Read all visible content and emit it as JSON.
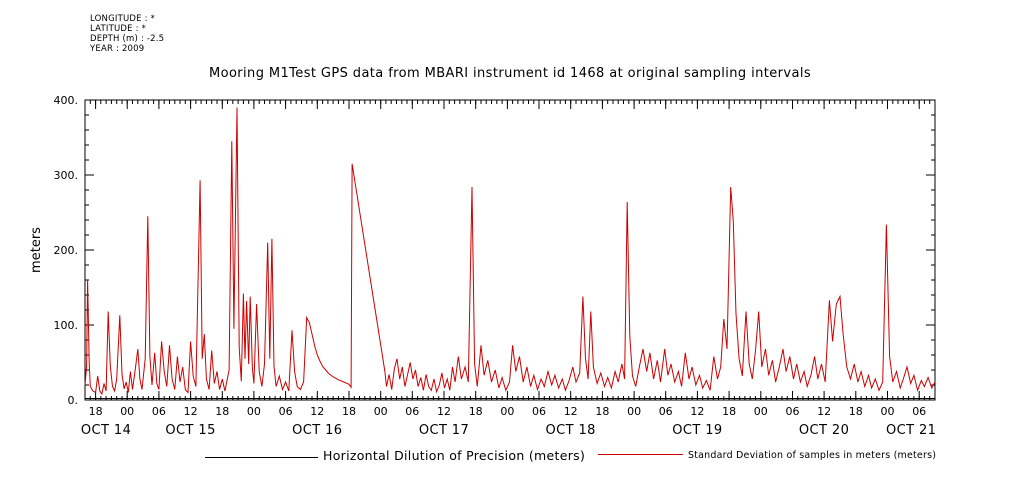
{
  "header_info": {
    "lines": [
      "LONGITUDE : *",
      "LATITUDE : *",
      "DEPTH (m) : -2.5",
      "YEAR : 2009"
    ]
  },
  "title": "Mooring M1Test GPS data from MBARI instrument id 1468 at original sampling intervals",
  "chart_data": {
    "type": "line",
    "title": "Mooring M1Test GPS data from MBARI instrument id 1468 at original sampling intervals",
    "xlabel": "",
    "ylabel": "meters",
    "xlim": [
      0,
      161
    ],
    "ylim": [
      0,
      400
    ],
    "x_minor_step": 1,
    "y_minor_step": 20,
    "grid": false,
    "legend_position": "bottom",
    "x_units": "hours since OCT 14 16:00 2009",
    "yticks": [
      0,
      100,
      200,
      300,
      400
    ],
    "ytick_labels": [
      "0.",
      "100.",
      "200.",
      "300.",
      "400."
    ],
    "xticks": [
      [
        2,
        "18"
      ],
      [
        8,
        "00"
      ],
      [
        14,
        "06"
      ],
      [
        20,
        "12"
      ],
      [
        26,
        "18"
      ],
      [
        32,
        "00"
      ],
      [
        38,
        "06"
      ],
      [
        44,
        "12"
      ],
      [
        50,
        "18"
      ],
      [
        56,
        "00"
      ],
      [
        62,
        "06"
      ],
      [
        68,
        "12"
      ],
      [
        74,
        "18"
      ],
      [
        80,
        "00"
      ],
      [
        86,
        "06"
      ],
      [
        92,
        "12"
      ],
      [
        98,
        "18"
      ],
      [
        104,
        "00"
      ],
      [
        110,
        "06"
      ],
      [
        116,
        "12"
      ],
      [
        122,
        "18"
      ],
      [
        128,
        "00"
      ],
      [
        134,
        "06"
      ],
      [
        140,
        "12"
      ],
      [
        146,
        "18"
      ],
      [
        152,
        "00"
      ],
      [
        158,
        "06"
      ]
    ],
    "day_labels": [
      [
        4,
        "OCT 14"
      ],
      [
        20,
        "OCT 15"
      ],
      [
        44,
        "OCT 16"
      ],
      [
        68,
        "OCT 17"
      ],
      [
        92,
        "OCT 18"
      ],
      [
        116,
        "OCT 19"
      ],
      [
        140,
        "OCT 20"
      ],
      [
        156.5,
        "OCT 21"
      ]
    ],
    "series": [
      {
        "id": "hdop",
        "name": "Horizontal Dilution of Precision (meters)",
        "color": "#000000",
        "points": [
          [
            0,
            2
          ],
          [
            161,
            2
          ]
        ]
      },
      {
        "id": "stddev",
        "name": "Standard Deviation of samples in meters (meters)",
        "color": "#cc0000",
        "points": [
          [
            0,
            20
          ],
          [
            0.3,
            45
          ],
          [
            0.5,
            160
          ],
          [
            0.8,
            50
          ],
          [
            1,
            18
          ],
          [
            1.5,
            12
          ],
          [
            2,
            10
          ],
          [
            2.4,
            32
          ],
          [
            2.8,
            12
          ],
          [
            3.2,
            8
          ],
          [
            3.6,
            22
          ],
          [
            4,
            12
          ],
          [
            4.4,
            118
          ],
          [
            4.8,
            45
          ],
          [
            5.2,
            18
          ],
          [
            5.6,
            12
          ],
          [
            6,
            28
          ],
          [
            6.6,
            113
          ],
          [
            7,
            35
          ],
          [
            7.4,
            15
          ],
          [
            7.8,
            24
          ],
          [
            8.2,
            10
          ],
          [
            8.6,
            38
          ],
          [
            9,
            14
          ],
          [
            9.5,
            40
          ],
          [
            10,
            68
          ],
          [
            10.4,
            28
          ],
          [
            10.8,
            14
          ],
          [
            11.4,
            55
          ],
          [
            11.9,
            245
          ],
          [
            12.3,
            58
          ],
          [
            12.7,
            20
          ],
          [
            13.2,
            63
          ],
          [
            13.6,
            22
          ],
          [
            14,
            14
          ],
          [
            14.5,
            78
          ],
          [
            15,
            38
          ],
          [
            15.5,
            18
          ],
          [
            16,
            73
          ],
          [
            16.5,
            28
          ],
          [
            17,
            14
          ],
          [
            17.5,
            58
          ],
          [
            18,
            24
          ],
          [
            18.5,
            44
          ],
          [
            19,
            14
          ],
          [
            19.5,
            10
          ],
          [
            20,
            78
          ],
          [
            20.5,
            32
          ],
          [
            21,
            18
          ],
          [
            21.8,
            293
          ],
          [
            22.2,
            55
          ],
          [
            22.6,
            88
          ],
          [
            23,
            28
          ],
          [
            23.5,
            14
          ],
          [
            24,
            66
          ],
          [
            24.5,
            22
          ],
          [
            25,
            38
          ],
          [
            25.5,
            14
          ],
          [
            26,
            28
          ],
          [
            26.5,
            12
          ],
          [
            27.3,
            40
          ],
          [
            27.8,
            345
          ],
          [
            28.2,
            95
          ],
          [
            28.8,
            390
          ],
          [
            29.2,
            70
          ],
          [
            29.6,
            25
          ],
          [
            30,
            142
          ],
          [
            30.3,
            55
          ],
          [
            30.6,
            132
          ],
          [
            31,
            48
          ],
          [
            31.3,
            138
          ],
          [
            31.7,
            42
          ],
          [
            32,
            22
          ],
          [
            32.5,
            128
          ],
          [
            33,
            38
          ],
          [
            33.5,
            18
          ],
          [
            34,
            48
          ],
          [
            34.6,
            210
          ],
          [
            35,
            55
          ],
          [
            35.4,
            215
          ],
          [
            35.8,
            45
          ],
          [
            36.2,
            18
          ],
          [
            36.8,
            32
          ],
          [
            37.4,
            14
          ],
          [
            38,
            24
          ],
          [
            38.6,
            12
          ],
          [
            39.2,
            93
          ],
          [
            39.7,
            38
          ],
          [
            40.2,
            18
          ],
          [
            40.8,
            14
          ],
          [
            41.4,
            24
          ],
          [
            42,
            110
          ],
          [
            42.5,
            103
          ],
          [
            43,
            88
          ],
          [
            43.5,
            72
          ],
          [
            44,
            60
          ],
          [
            44.5,
            52
          ],
          [
            45,
            45
          ],
          [
            45.6,
            40
          ],
          [
            46.2,
            35
          ],
          [
            47,
            31
          ],
          [
            48,
            27
          ],
          [
            49,
            24
          ],
          [
            50,
            21
          ],
          [
            50.4,
            17
          ],
          [
            50.6,
            315
          ],
          [
            56.8,
            38
          ],
          [
            57.1,
            18
          ],
          [
            57.6,
            34
          ],
          [
            58.1,
            14
          ],
          [
            58.6,
            42
          ],
          [
            59.1,
            55
          ],
          [
            59.6,
            28
          ],
          [
            60.1,
            44
          ],
          [
            60.6,
            18
          ],
          [
            61.1,
            34
          ],
          [
            61.6,
            50
          ],
          [
            62.1,
            28
          ],
          [
            62.6,
            40
          ],
          [
            63.1,
            18
          ],
          [
            63.6,
            30
          ],
          [
            64.1,
            13
          ],
          [
            64.6,
            34
          ],
          [
            65.1,
            18
          ],
          [
            65.6,
            13
          ],
          [
            66.1,
            28
          ],
          [
            66.6,
            11
          ],
          [
            67.1,
            20
          ],
          [
            67.6,
            36
          ],
          [
            68.1,
            16
          ],
          [
            68.6,
            28
          ],
          [
            69.1,
            13
          ],
          [
            69.6,
            44
          ],
          [
            70.1,
            24
          ],
          [
            70.7,
            58
          ],
          [
            71.3,
            28
          ],
          [
            72,
            44
          ],
          [
            72.6,
            24
          ],
          [
            73.3,
            284
          ],
          [
            73.8,
            48
          ],
          [
            74.3,
            18
          ],
          [
            75,
            73
          ],
          [
            75.6,
            33
          ],
          [
            76.3,
            53
          ],
          [
            77,
            24
          ],
          [
            77.7,
            40
          ],
          [
            78.4,
            16
          ],
          [
            79,
            30
          ],
          [
            79.7,
            13
          ],
          [
            80.4,
            24
          ],
          [
            81,
            73
          ],
          [
            81.6,
            38
          ],
          [
            82.3,
            58
          ],
          [
            83,
            24
          ],
          [
            83.7,
            44
          ],
          [
            84.4,
            18
          ],
          [
            85,
            33
          ],
          [
            85.7,
            14
          ],
          [
            86.4,
            28
          ],
          [
            87,
            18
          ],
          [
            87.7,
            38
          ],
          [
            88.4,
            20
          ],
          [
            89,
            33
          ],
          [
            89.7,
            16
          ],
          [
            90.4,
            28
          ],
          [
            91,
            13
          ],
          [
            91.7,
            26
          ],
          [
            92.4,
            44
          ],
          [
            93,
            24
          ],
          [
            93.7,
            36
          ],
          [
            94.3,
            138
          ],
          [
            94.8,
            55
          ],
          [
            95.3,
            28
          ],
          [
            95.8,
            118
          ],
          [
            96.3,
            44
          ],
          [
            97,
            22
          ],
          [
            97.7,
            36
          ],
          [
            98.4,
            18
          ],
          [
            99,
            30
          ],
          [
            99.7,
            16
          ],
          [
            100.4,
            38
          ],
          [
            101,
            24
          ],
          [
            101.7,
            48
          ],
          [
            102.2,
            28
          ],
          [
            102.7,
            264
          ],
          [
            103.2,
            85
          ],
          [
            103.7,
            32
          ],
          [
            104.3,
            18
          ],
          [
            105,
            44
          ],
          [
            105.7,
            68
          ],
          [
            106.4,
            38
          ],
          [
            107,
            63
          ],
          [
            107.7,
            28
          ],
          [
            108.4,
            53
          ],
          [
            109,
            24
          ],
          [
            109.8,
            68
          ],
          [
            110.4,
            33
          ],
          [
            111,
            48
          ],
          [
            111.7,
            24
          ],
          [
            112.4,
            38
          ],
          [
            113,
            18
          ],
          [
            113.7,
            63
          ],
          [
            114.4,
            28
          ],
          [
            115,
            44
          ],
          [
            115.7,
            20
          ],
          [
            116.4,
            33
          ],
          [
            117,
            16
          ],
          [
            117.7,
            26
          ],
          [
            118.4,
            13
          ],
          [
            119.1,
            58
          ],
          [
            119.8,
            28
          ],
          [
            120.4,
            44
          ],
          [
            121,
            108
          ],
          [
            121.6,
            68
          ],
          [
            122.3,
            284
          ],
          [
            122.8,
            238
          ],
          [
            123.3,
            115
          ],
          [
            123.9,
            55
          ],
          [
            124.5,
            32
          ],
          [
            125.2,
            118
          ],
          [
            125.8,
            48
          ],
          [
            126.4,
            28
          ],
          [
            127,
            66
          ],
          [
            127.6,
            118
          ],
          [
            128.2,
            44
          ],
          [
            128.9,
            68
          ],
          [
            129.5,
            33
          ],
          [
            130.2,
            53
          ],
          [
            130.8,
            24
          ],
          [
            131.5,
            44
          ],
          [
            132.2,
            68
          ],
          [
            132.8,
            38
          ],
          [
            133.5,
            58
          ],
          [
            134.2,
            28
          ],
          [
            134.8,
            48
          ],
          [
            135.5,
            24
          ],
          [
            136.2,
            38
          ],
          [
            136.8,
            18
          ],
          [
            137.5,
            33
          ],
          [
            138.2,
            58
          ],
          [
            138.8,
            28
          ],
          [
            139.5,
            48
          ],
          [
            140.2,
            24
          ],
          [
            141,
            133
          ],
          [
            141.6,
            78
          ],
          [
            142.3,
            128
          ],
          [
            143,
            138
          ],
          [
            143.6,
            88
          ],
          [
            144.3,
            44
          ],
          [
            145,
            28
          ],
          [
            145.7,
            48
          ],
          [
            146.4,
            24
          ],
          [
            147,
            38
          ],
          [
            147.7,
            18
          ],
          [
            148.4,
            33
          ],
          [
            149,
            16
          ],
          [
            149.7,
            28
          ],
          [
            150.4,
            13
          ],
          [
            151.1,
            24
          ],
          [
            151.8,
            234
          ],
          [
            152.4,
            58
          ],
          [
            153,
            24
          ],
          [
            153.7,
            38
          ],
          [
            154.4,
            16
          ],
          [
            155,
            28
          ],
          [
            155.7,
            44
          ],
          [
            156.4,
            22
          ],
          [
            157,
            33
          ],
          [
            157.7,
            13
          ],
          [
            158.4,
            26
          ],
          [
            159,
            18
          ],
          [
            159.7,
            30
          ],
          [
            160.4,
            16
          ],
          [
            161,
            24
          ]
        ]
      }
    ]
  },
  "legend": {
    "hdop_label": "Horizontal Dilution of Precision (meters)",
    "stddev_label": "Standard Deviation of samples in meters (meters)"
  }
}
